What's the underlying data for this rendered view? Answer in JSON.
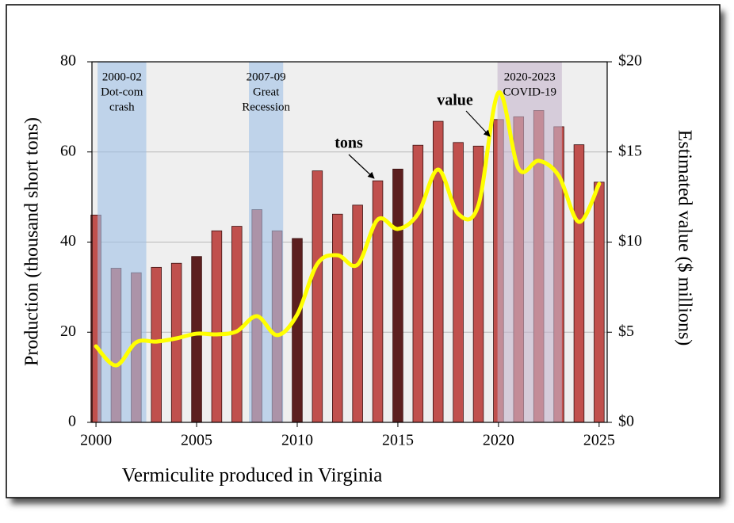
{
  "chart_data": {
    "type": "bar",
    "x_title": "Vermiculite produced in Virginia",
    "y_title": "Production (thousand short tons)",
    "y2_title": "Estimated value ($ millions)",
    "x": [
      2000,
      2001,
      2002,
      2003,
      2004,
      2005,
      2006,
      2007,
      2008,
      2009,
      2010,
      2011,
      2012,
      2013,
      2014,
      2015,
      2016,
      2017,
      2018,
      2019,
      2020,
      2021,
      2022,
      2023,
      2024,
      2025
    ],
    "xlim": [
      1999.8,
      2025.4
    ],
    "xticks": [
      2000,
      2005,
      2010,
      2015,
      2020,
      2025
    ],
    "ylim": [
      0,
      80
    ],
    "yticks": [
      0,
      20,
      40,
      60,
      80
    ],
    "y2lim": [
      0,
      20
    ],
    "y2ticks": [
      {
        "value": 0,
        "label": "$0"
      },
      {
        "value": 5,
        "label": "$5"
      },
      {
        "value": 10,
        "label": "$10"
      },
      {
        "value": 15,
        "label": "$15"
      },
      {
        "value": 20,
        "label": "$20"
      }
    ],
    "grid": true,
    "series": [
      {
        "name": "tons",
        "type": "bar",
        "color": "#c0504d",
        "colors": [
          "#c0504d",
          "#c0504d",
          "#c0504d",
          "#c0504d",
          "#c0504d",
          "#5c1f1f",
          "#c0504d",
          "#c0504d",
          "#c0504d",
          "#c0504d",
          "#5c1f1f",
          "#c0504d",
          "#c0504d",
          "#c0504d",
          "#c0504d",
          "#5c1f1f",
          "#c0504d",
          "#c0504d",
          "#c0504d",
          "#c0504d",
          "#c0504d",
          "#c0504d",
          "#c0504d",
          "#c0504d",
          "#c0504d",
          "#c0504d"
        ],
        "values": [
          46,
          34.2,
          33.2,
          34.4,
          35.3,
          36.8,
          42.5,
          43.5,
          47.2,
          42.5,
          40.8,
          55.8,
          46.2,
          48.2,
          53.6,
          56.2,
          61.5,
          66.8,
          62.1,
          61.3,
          67.2,
          67.8,
          69.2,
          65.6,
          61.6,
          53.3
        ]
      },
      {
        "name": "value",
        "type": "line",
        "axis": "y2",
        "color": "#ffff00",
        "values": [
          4.22,
          3.16,
          4.44,
          4.48,
          4.66,
          4.92,
          4.88,
          5.05,
          5.89,
          4.84,
          5.98,
          8.79,
          9.27,
          8.75,
          11.25,
          10.73,
          11.56,
          14.02,
          11.56,
          12.04,
          18.29,
          14.07,
          14.51,
          13.67,
          11.12,
          13.23
        ]
      }
    ],
    "periods": [
      {
        "label": [
          "2000-02",
          "Dot-com",
          "crash"
        ],
        "start": 2000.08,
        "end": 2002.5,
        "color": "#9fc0e6"
      },
      {
        "label": [
          "2007-09",
          "Great",
          "Recession"
        ],
        "start": 2007.6,
        "end": 2009.3,
        "color": "#9fc0e6"
      },
      {
        "label": [
          "2020-2023",
          "COVID-19"
        ],
        "start": 2019.95,
        "end": 2023.15,
        "color": "#c4b4cc"
      }
    ]
  }
}
